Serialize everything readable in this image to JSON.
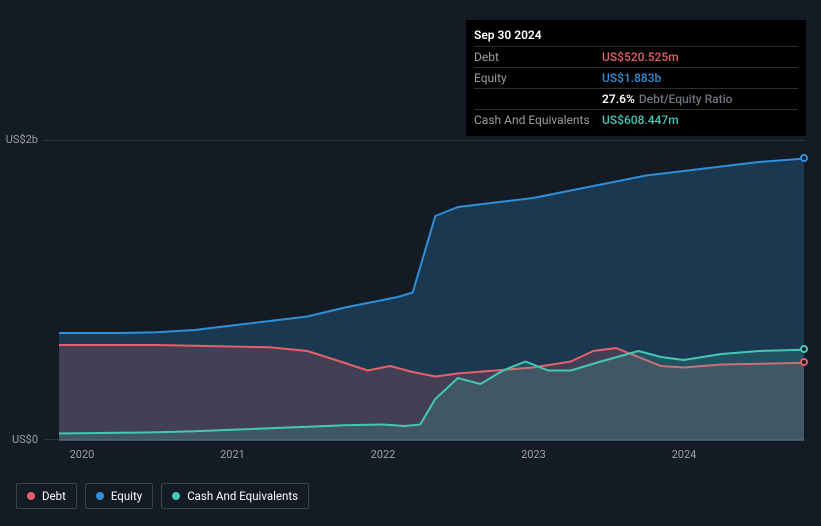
{
  "tooltip": {
    "date": "Sep 30 2024",
    "rows": [
      {
        "label": "Debt",
        "value": "US$520.525m",
        "color": "#e6606a"
      },
      {
        "label": "Equity",
        "value": "US$1.883b",
        "color": "#2f8fd8"
      },
      {
        "label": "",
        "ratio_pct": "27.6%",
        "ratio_txt": "Debt/Equity Ratio"
      },
      {
        "label": "Cash And Equivalents",
        "value": "US$608.447m",
        "color": "#43c9b0"
      }
    ]
  },
  "chart": {
    "type": "area",
    "background_color": "#151b24",
    "grid_color": "#2e3540",
    "ylim": [
      0,
      2000
    ],
    "y_ticks": [
      {
        "v": 0,
        "label": "US$0"
      },
      {
        "v": 2000,
        "label": "US$2b"
      }
    ],
    "xlim": [
      2019.75,
      2024.8
    ],
    "x_ticks": [
      {
        "v": 2020,
        "label": "2020"
      },
      {
        "v": 2021,
        "label": "2021"
      },
      {
        "v": 2022,
        "label": "2022"
      },
      {
        "v": 2023,
        "label": "2023"
      },
      {
        "v": 2024,
        "label": "2024"
      }
    ],
    "series": [
      {
        "name": "Equity",
        "color": "#2f8fd8",
        "fill_opacity": 0.25,
        "line_width": 2,
        "points": [
          [
            2019.85,
            720
          ],
          [
            2020.25,
            720
          ],
          [
            2020.5,
            725
          ],
          [
            2020.75,
            740
          ],
          [
            2021,
            770
          ],
          [
            2021.25,
            800
          ],
          [
            2021.5,
            830
          ],
          [
            2021.75,
            890
          ],
          [
            2022,
            940
          ],
          [
            2022.1,
            960
          ],
          [
            2022.2,
            990
          ],
          [
            2022.35,
            1500
          ],
          [
            2022.5,
            1560
          ],
          [
            2022.75,
            1590
          ],
          [
            2023,
            1620
          ],
          [
            2023.25,
            1670
          ],
          [
            2023.5,
            1720
          ],
          [
            2023.75,
            1770
          ],
          [
            2024,
            1800
          ],
          [
            2024.25,
            1830
          ],
          [
            2024.5,
            1860
          ],
          [
            2024.8,
            1883
          ]
        ]
      },
      {
        "name": "Debt",
        "color": "#e6606a",
        "fill_opacity": 0.2,
        "line_width": 2,
        "points": [
          [
            2019.85,
            640
          ],
          [
            2020.25,
            640
          ],
          [
            2020.5,
            640
          ],
          [
            2020.75,
            635
          ],
          [
            2021,
            630
          ],
          [
            2021.25,
            625
          ],
          [
            2021.5,
            600
          ],
          [
            2021.75,
            520
          ],
          [
            2021.9,
            470
          ],
          [
            2022.05,
            500
          ],
          [
            2022.2,
            460
          ],
          [
            2022.35,
            430
          ],
          [
            2022.5,
            450
          ],
          [
            2022.75,
            470
          ],
          [
            2023,
            490
          ],
          [
            2023.25,
            530
          ],
          [
            2023.4,
            600
          ],
          [
            2023.55,
            620
          ],
          [
            2023.7,
            560
          ],
          [
            2023.85,
            500
          ],
          [
            2024,
            490
          ],
          [
            2024.25,
            510
          ],
          [
            2024.5,
            515
          ],
          [
            2024.8,
            521
          ]
        ]
      },
      {
        "name": "Cash And Equivalents",
        "color": "#43c9b0",
        "fill_opacity": 0.18,
        "line_width": 2,
        "points": [
          [
            2019.85,
            50
          ],
          [
            2020.25,
            55
          ],
          [
            2020.5,
            58
          ],
          [
            2020.75,
            65
          ],
          [
            2021,
            75
          ],
          [
            2021.25,
            85
          ],
          [
            2021.5,
            95
          ],
          [
            2021.75,
            105
          ],
          [
            2022,
            110
          ],
          [
            2022.15,
            100
          ],
          [
            2022.25,
            110
          ],
          [
            2022.35,
            280
          ],
          [
            2022.5,
            420
          ],
          [
            2022.65,
            380
          ],
          [
            2022.8,
            470
          ],
          [
            2022.95,
            530
          ],
          [
            2023.1,
            470
          ],
          [
            2023.25,
            470
          ],
          [
            2023.45,
            530
          ],
          [
            2023.7,
            600
          ],
          [
            2023.85,
            560
          ],
          [
            2024,
            540
          ],
          [
            2024.25,
            580
          ],
          [
            2024.5,
            600
          ],
          [
            2024.8,
            608
          ]
        ]
      }
    ],
    "legend": [
      {
        "label": "Debt",
        "color": "#e6606a"
      },
      {
        "label": "Equity",
        "color": "#2f8fd8"
      },
      {
        "label": "Cash And Equivalents",
        "color": "#43c9b0"
      }
    ]
  }
}
